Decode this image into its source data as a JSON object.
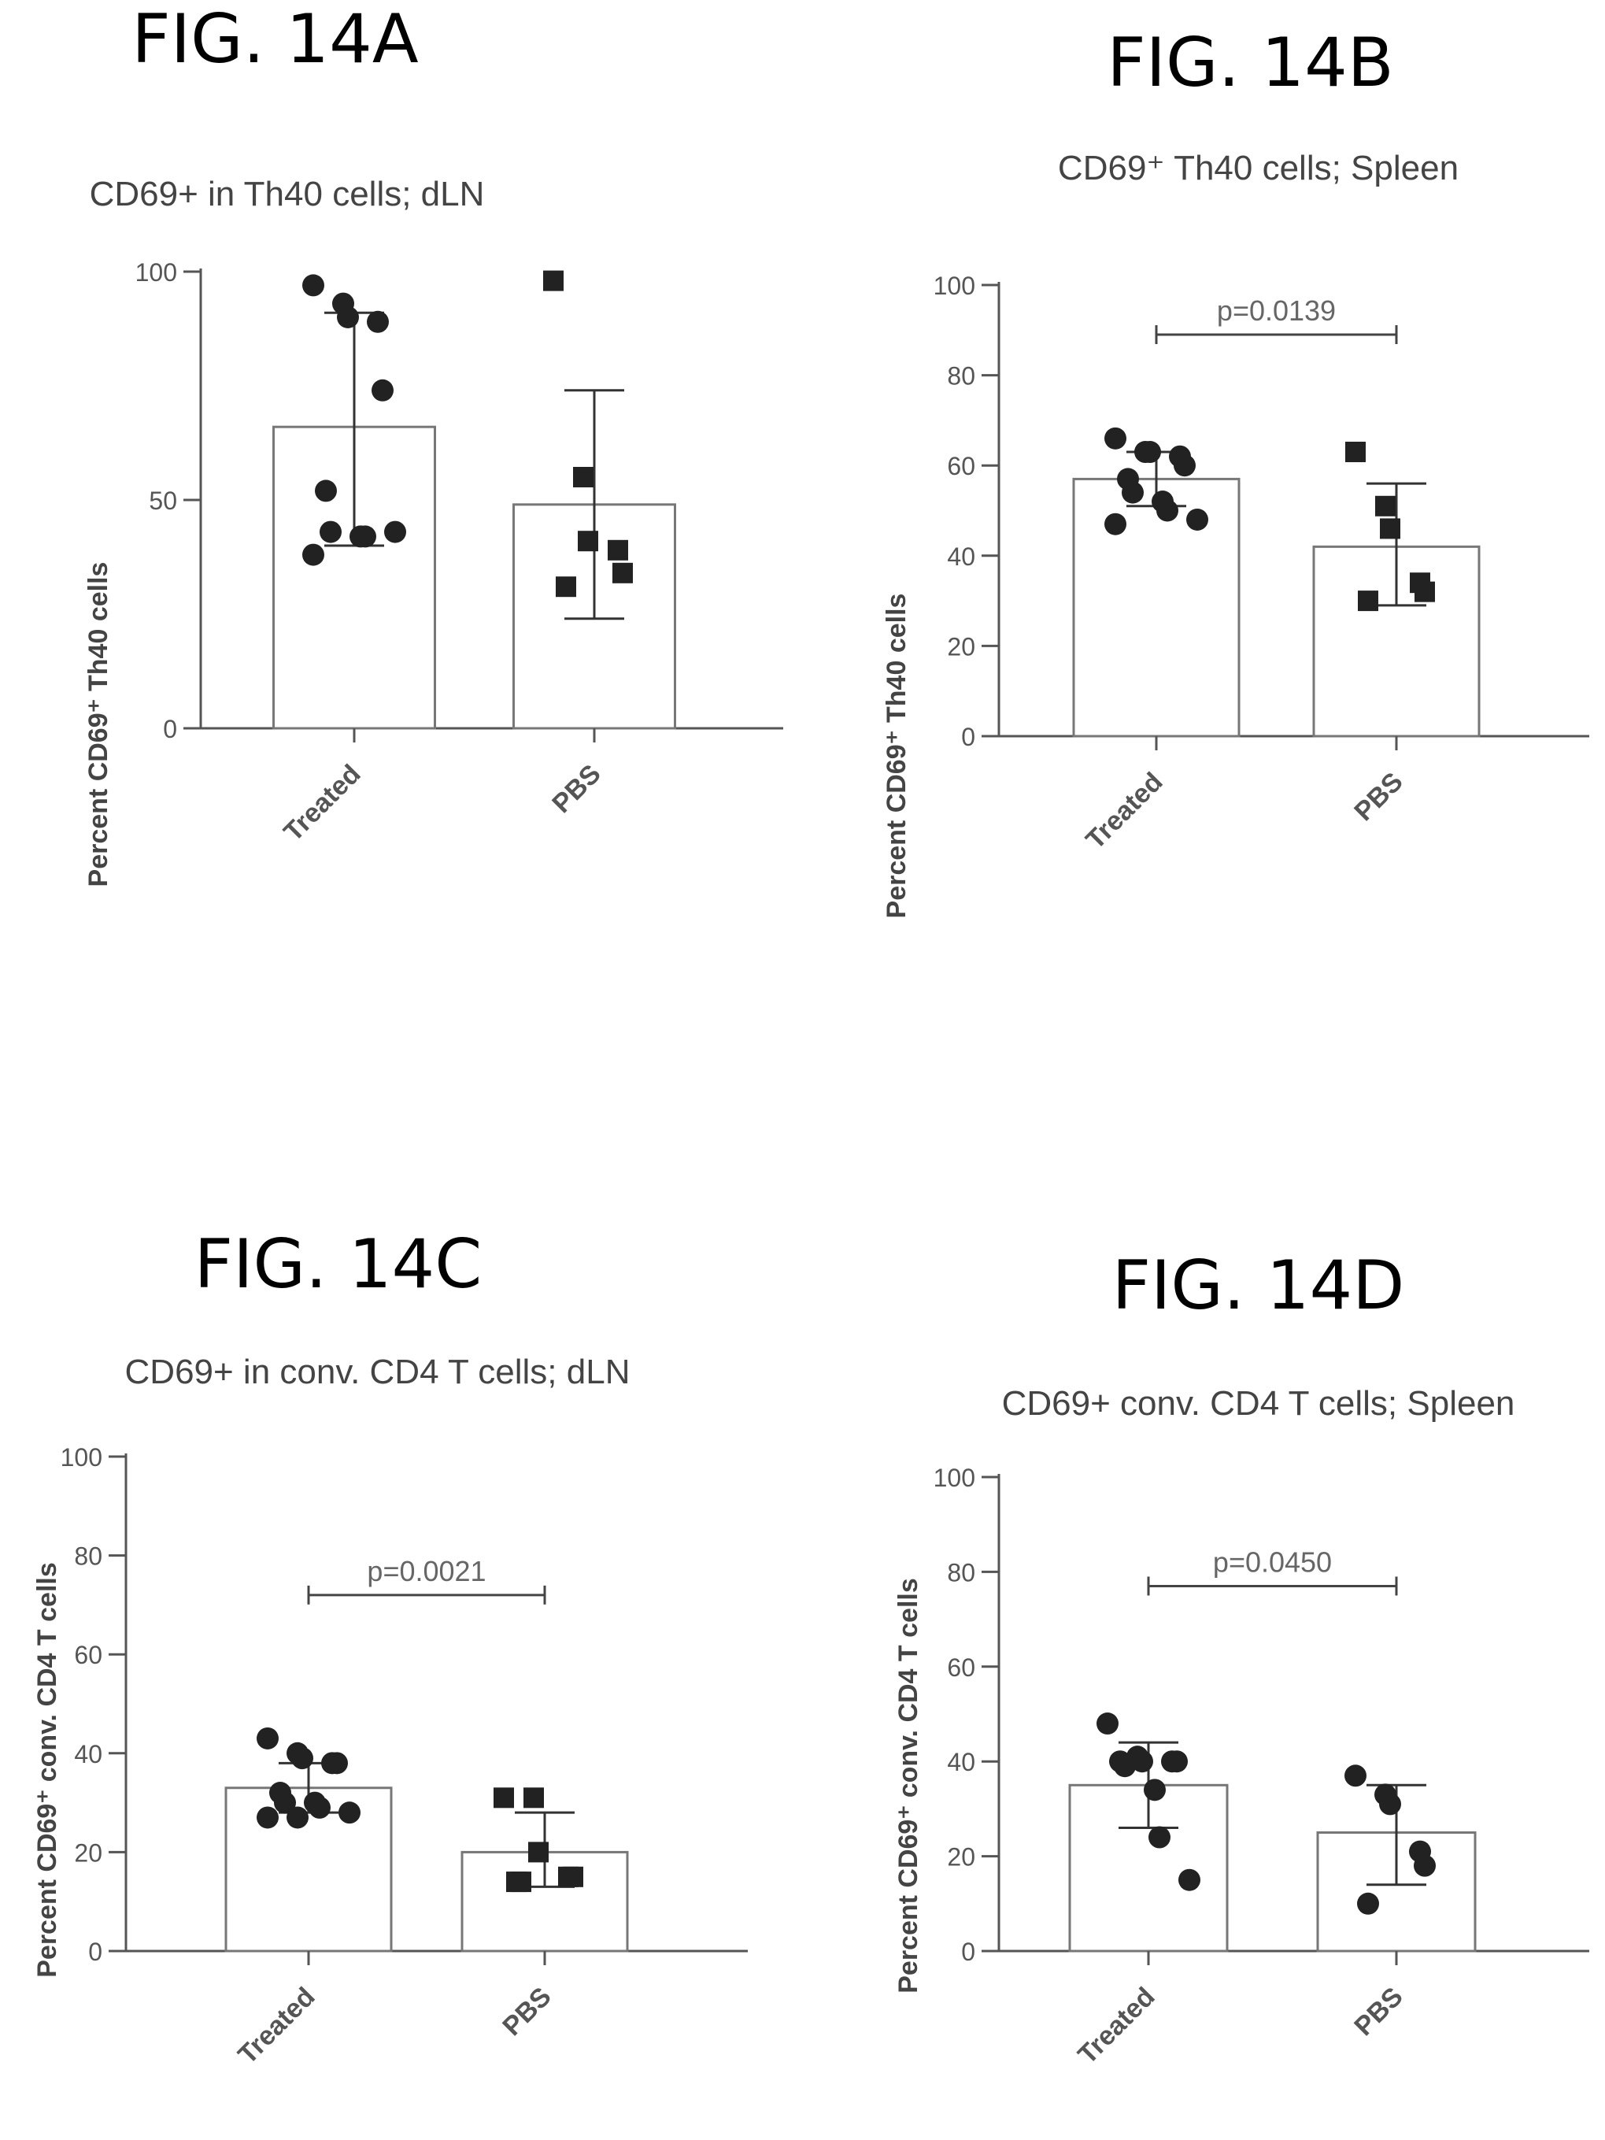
{
  "charts": [
    {
      "fig_label": "FIG. 14A",
      "title": "CD69+ in Th40 cells; dLN",
      "ylabel": "Percent CD69⁺ Th40 cells",
      "xlabels": [
        "Treated",
        "PBS"
      ],
      "yticks": [
        "0",
        "50",
        "100"
      ]
    },
    {
      "fig_label": "FIG. 14B",
      "title": "CD69⁺ Th40 cells; Spleen",
      "ylabel": "Percent CD69⁺ Th40 cells",
      "xlabels": [
        "Treated",
        "PBS"
      ],
      "yticks": [
        "0",
        "20",
        "40",
        "60",
        "80",
        "100"
      ],
      "pvalue": "p=0.0139"
    },
    {
      "fig_label": "FIG. 14C",
      "title": "CD69+ in conv. CD4 T cells; dLN",
      "ylabel": "Percent CD69⁺ conv. CD4 T cells",
      "xlabels": [
        "Treated",
        "PBS"
      ],
      "yticks": [
        "0",
        "20",
        "40",
        "60",
        "80",
        "100"
      ],
      "pvalue": "p=0.0021"
    },
    {
      "fig_label": "FIG. 14D",
      "title": "CD69+ conv. CD4 T cells; Spleen",
      "ylabel": "Percent CD69⁺ conv. CD4 T cells",
      "xlabels": [
        "Treated",
        "PBS"
      ],
      "yticks": [
        "0",
        "20",
        "40",
        "60",
        "80",
        "100"
      ],
      "pvalue": "p=0.0450"
    }
  ],
  "chart_data": [
    {
      "type": "bar",
      "title": "CD69+ in Th40 cells; dLN",
      "xlabel": "",
      "ylabel": "Percent CD69⁺ Th40 cells",
      "ylim": [
        0,
        100
      ],
      "categories": [
        "Treated",
        "PBS"
      ],
      "means": [
        66,
        49
      ],
      "error": [
        [
          40,
          91
        ],
        [
          24,
          74
        ]
      ],
      "points": [
        [
          97,
          93,
          90,
          89,
          74,
          52,
          43,
          42,
          42,
          43,
          38
        ],
        [
          98,
          55,
          41,
          39,
          34,
          31
        ]
      ]
    },
    {
      "type": "bar",
      "title": "CD69⁺ Th40 cells; Spleen",
      "xlabel": "",
      "ylabel": "Percent CD69⁺ Th40 cells",
      "ylim": [
        0,
        100
      ],
      "categories": [
        "Treated",
        "PBS"
      ],
      "means": [
        57,
        42
      ],
      "error": [
        [
          51,
          63
        ],
        [
          29,
          56
        ]
      ],
      "pvalue": "p=0.0139",
      "points": [
        [
          66,
          63,
          63,
          62,
          60,
          57,
          54,
          52,
          50,
          48,
          47
        ],
        [
          63,
          51,
          46,
          34,
          32,
          30
        ]
      ]
    },
    {
      "type": "bar",
      "title": "CD69+ in conv. CD4 T cells; dLN",
      "xlabel": "",
      "ylabel": "Percent CD69⁺ conv. CD4 T cells",
      "ylim": [
        0,
        100
      ],
      "categories": [
        "Treated",
        "PBS"
      ],
      "means": [
        33,
        20
      ],
      "error": [
        [
          28,
          38
        ],
        [
          13,
          28
        ]
      ],
      "pvalue": "p=0.0021",
      "points": [
        [
          43,
          40,
          39,
          38,
          38,
          32,
          30,
          30,
          29,
          28,
          27,
          27
        ],
        [
          31,
          31,
          20,
          15,
          15,
          14,
          14
        ]
      ]
    },
    {
      "type": "bar",
      "title": "CD69+ conv. CD4 T cells; Spleen",
      "xlabel": "",
      "ylabel": "Percent CD69⁺ conv. CD4 T cells",
      "ylim": [
        0,
        100
      ],
      "categories": [
        "Treated",
        "PBS"
      ],
      "means": [
        35,
        25
      ],
      "error": [
        [
          26,
          44
        ],
        [
          14,
          35
        ]
      ],
      "pvalue": "p=0.0450",
      "points": [
        [
          48,
          41,
          40,
          40,
          40,
          40,
          39,
          34,
          24,
          15
        ],
        [
          37,
          33,
          31,
          21,
          18,
          10
        ]
      ]
    }
  ]
}
